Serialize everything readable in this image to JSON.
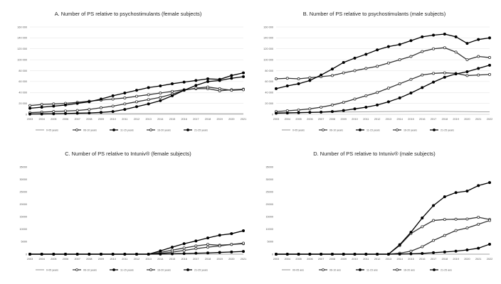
{
  "chart_data": [
    {
      "type": "line",
      "title": "A. Number of PS relative to psychostimulants (female subjects)",
      "x": [
        "2003",
        "2004",
        "2005",
        "2006",
        "2007",
        "2008",
        "2009",
        "2010",
        "2011",
        "2012",
        "2013",
        "2014",
        "2015",
        "2016",
        "2017",
        "2018",
        "2019",
        "2020",
        "2021"
      ],
      "ylim": [
        0,
        160000
      ],
      "yticks": [
        0,
        20000,
        40000,
        60000,
        80000,
        100000,
        120000,
        140000,
        160000
      ],
      "ytick_labels": [
        "0",
        "20 000",
        "40 000",
        "60 000",
        "80 000",
        "100 000",
        "120 000",
        "140 000",
        "160 000"
      ],
      "grid": true,
      "legend_position": "bottom",
      "series": [
        {
          "name": "0-05 years",
          "color": "#a6a6a6",
          "marker": "none",
          "values": [
            800,
            900,
            900,
            1000,
            1000,
            1000,
            1000,
            1000,
            1000,
            1100,
            1100,
            1100,
            1100,
            1100,
            1100,
            1100,
            1000,
            900,
            900
          ]
        },
        {
          "name": "06-10 years",
          "color": "#333333",
          "marker": "open",
          "values": [
            16000,
            18000,
            19000,
            20000,
            22000,
            24000,
            26000,
            28000,
            30000,
            33000,
            36000,
            39000,
            42000,
            45000,
            47000,
            47000,
            43000,
            45000,
            46000
          ]
        },
        {
          "name": "11-15 years",
          "color": "#000000",
          "marker": "filled",
          "values": [
            11000,
            13000,
            15000,
            17000,
            20000,
            23000,
            28000,
            34000,
            39000,
            44000,
            49000,
            52000,
            56000,
            59000,
            62000,
            65000,
            64000,
            71000,
            76000
          ]
        },
        {
          "name": "16-20 years",
          "color": "#333333",
          "marker": "open",
          "values": [
            3000,
            4000,
            5000,
            6000,
            7000,
            9000,
            12000,
            15000,
            19000,
            23000,
            27000,
            31000,
            37000,
            44000,
            48000,
            50000,
            47000,
            44000,
            45000
          ]
        },
        {
          "name": "21-25 years",
          "color": "#000000",
          "marker": "filled",
          "values": [
            500,
            700,
            1000,
            1500,
            2000,
            2500,
            3500,
            5000,
            9000,
            14000,
            19000,
            25000,
            34000,
            44000,
            53000,
            60000,
            62000,
            66000,
            69000
          ]
        }
      ]
    },
    {
      "type": "line",
      "title": "B. Number of PS relative to psychostimulants (male subjects)",
      "x": [
        "2003",
        "2004",
        "2005",
        "2006",
        "2007",
        "2008",
        "2009",
        "2010",
        "2011",
        "2012",
        "2013",
        "2014",
        "2015",
        "2016",
        "2017",
        "2018",
        "2019",
        "2020",
        "2021",
        "2022"
      ],
      "ylim": [
        0,
        160000
      ],
      "yticks": [
        0,
        20000,
        40000,
        60000,
        80000,
        100000,
        120000,
        140000,
        160000
      ],
      "ytick_labels": [
        "0",
        "20 000",
        "40 000",
        "60 000",
        "80 000",
        "100 000",
        "120 000",
        "140 000",
        "160 000"
      ],
      "grid": true,
      "legend_position": "bottom",
      "series": [
        {
          "name": "0-05 years",
          "color": "#a6a6a6",
          "marker": "none",
          "values": [
            3000,
            3200,
            3400,
            3600,
            3800,
            4000,
            4200,
            4400,
            4600,
            4800,
            5000,
            5200,
            5400,
            5600,
            5600,
            5400,
            5000,
            4800,
            4600,
            4600
          ]
        },
        {
          "name": "06-10 years",
          "color": "#333333",
          "marker": "open",
          "values": [
            65000,
            66000,
            65000,
            67000,
            69000,
            71000,
            76000,
            80000,
            84000,
            88000,
            94000,
            100000,
            106000,
            115000,
            120000,
            122000,
            114000,
            100000,
            106000,
            104000
          ]
        },
        {
          "name": "11-15 years",
          "color": "#000000",
          "marker": "filled",
          "values": [
            47000,
            52000,
            56000,
            62000,
            72000,
            83000,
            95000,
            103000,
            110000,
            118000,
            124000,
            128000,
            135000,
            142000,
            145000,
            147000,
            142000,
            130000,
            137000,
            140000
          ]
        },
        {
          "name": "16-20 years",
          "color": "#333333",
          "marker": "open",
          "values": [
            5000,
            6500,
            8000,
            10000,
            13000,
            17000,
            22000,
            28000,
            34000,
            40000,
            48000,
            56000,
            64000,
            72000,
            75000,
            76000,
            75000,
            71000,
            72000,
            73000
          ]
        },
        {
          "name": "21-25 years",
          "color": "#000000",
          "marker": "filled",
          "values": [
            2000,
            2500,
            3000,
            3500,
            4000,
            5000,
            7000,
            10000,
            13000,
            17000,
            23000,
            30000,
            39000,
            49000,
            59000,
            68000,
            74000,
            78000,
            84000,
            90000
          ]
        }
      ]
    },
    {
      "type": "line",
      "title": "C. Number of PS relative to Intuniv® (female subjects)",
      "x": [
        "2003",
        "2004",
        "2005",
        "2006",
        "2007",
        "2008",
        "2009",
        "2010",
        "2011",
        "2012",
        "2013",
        "2014",
        "2015",
        "2016",
        "2017",
        "2018",
        "2019",
        "2020",
        "2021"
      ],
      "ylim": [
        0,
        35000
      ],
      "yticks": [
        0,
        5000,
        10000,
        15000,
        20000,
        25000,
        30000,
        35000
      ],
      "ytick_labels": [
        "0",
        "5000",
        "10000",
        "15000",
        "20000",
        "25000",
        "30000",
        "35000"
      ],
      "grid": false,
      "legend_position": "bottom",
      "series": [
        {
          "name": "0-05 years",
          "color": "#a6a6a6",
          "marker": "none",
          "values": [
            0,
            0,
            0,
            0,
            0,
            0,
            0,
            0,
            0,
            0,
            0,
            0,
            0,
            0,
            0,
            0,
            0,
            0,
            0
          ]
        },
        {
          "name": "06-10 years",
          "color": "#333333",
          "marker": "open",
          "values": [
            0,
            0,
            0,
            0,
            0,
            0,
            0,
            0,
            0,
            0,
            0,
            700,
            1600,
            2500,
            3300,
            3900,
            3600,
            3900,
            4200
          ]
        },
        {
          "name": "11-15 years",
          "color": "#000000",
          "marker": "filled",
          "values": [
            0,
            0,
            0,
            0,
            0,
            0,
            0,
            0,
            0,
            0,
            0,
            1300,
            2800,
            4200,
            5300,
            6500,
            7600,
            8200,
            9400
          ]
        },
        {
          "name": "16-20 years",
          "color": "#333333",
          "marker": "open",
          "values": [
            0,
            0,
            0,
            0,
            0,
            0,
            0,
            0,
            0,
            0,
            0,
            300,
            800,
            1500,
            2200,
            2800,
            3300,
            3900,
            4400
          ]
        },
        {
          "name": "21-25 years",
          "color": "#000000",
          "marker": "filled",
          "values": [
            0,
            0,
            0,
            0,
            0,
            0,
            0,
            0,
            0,
            0,
            0,
            50,
            150,
            250,
            400,
            500,
            700,
            900,
            1100
          ]
        }
      ]
    },
    {
      "type": "line",
      "title": "D. Number of PS relative to Intuniv® (male subjects)",
      "x": [
        "2003",
        "2004",
        "2005",
        "2006",
        "2007",
        "2008",
        "2009",
        "2010",
        "2011",
        "2012",
        "2013",
        "2014",
        "2015",
        "2016",
        "2017",
        "2018",
        "2019",
        "2020",
        "2021",
        "2022"
      ],
      "ylim": [
        0,
        35000
      ],
      "yticks": [
        0,
        5000,
        10000,
        15000,
        20000,
        25000,
        30000,
        35000
      ],
      "ytick_labels": [
        "0",
        "5000",
        "10000",
        "15000",
        "20000",
        "25000",
        "30000",
        "35000"
      ],
      "grid": false,
      "legend_position": "bottom",
      "series": [
        {
          "name": "00-05 ans",
          "color": "#a6a6a6",
          "marker": "none",
          "values": [
            0,
            0,
            0,
            0,
            0,
            0,
            0,
            0,
            0,
            0,
            0,
            0,
            0,
            0,
            0,
            0,
            0,
            0,
            0,
            0
          ]
        },
        {
          "name": "06-10 ans",
          "color": "#333333",
          "marker": "open",
          "values": [
            0,
            0,
            0,
            0,
            0,
            0,
            0,
            0,
            0,
            0,
            0,
            3500,
            8300,
            11000,
            13500,
            13900,
            14000,
            14100,
            14800,
            13900
          ]
        },
        {
          "name": "11-15 ans",
          "color": "#000000",
          "marker": "filled",
          "values": [
            0,
            0,
            0,
            0,
            0,
            0,
            0,
            0,
            0,
            0,
            0,
            3800,
            8800,
            14500,
            19500,
            23000,
            24700,
            25300,
            27500,
            28700
          ]
        },
        {
          "name": "16-20 ans",
          "color": "#333333",
          "marker": "open",
          "values": [
            0,
            0,
            0,
            0,
            0,
            0,
            0,
            0,
            0,
            0,
            0,
            400,
            1200,
            3000,
            5500,
            7500,
            9500,
            10500,
            12000,
            13500
          ]
        },
        {
          "name": "21-25 ans",
          "color": "#000000",
          "marker": "filled",
          "values": [
            0,
            0,
            0,
            0,
            0,
            0,
            0,
            0,
            0,
            0,
            0,
            50,
            150,
            300,
            600,
            900,
            1200,
            1700,
            2400,
            4000
          ]
        }
      ]
    }
  ]
}
